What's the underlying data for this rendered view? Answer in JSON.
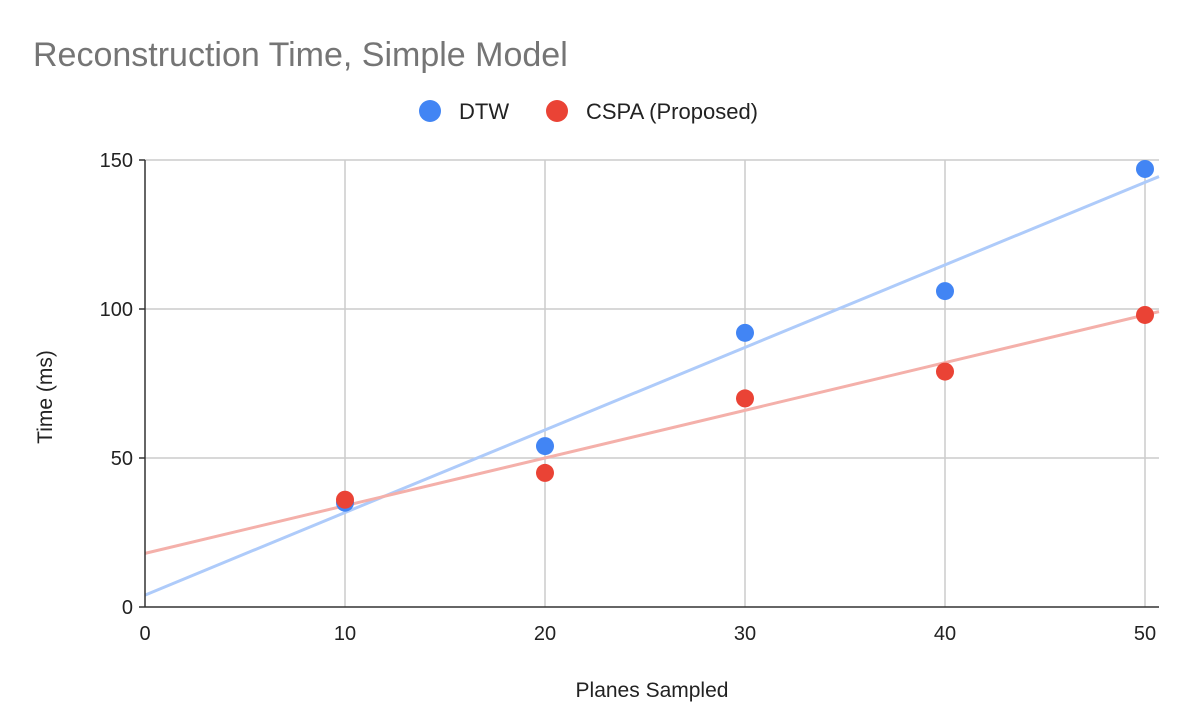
{
  "chart_data": {
    "type": "scatter",
    "title": "Reconstruction Time, Simple Model",
    "xlabel": "Planes Sampled",
    "ylabel": "Time (ms)",
    "xlim": [
      0,
      50.7
    ],
    "ylim": [
      0,
      150
    ],
    "x_ticks": [
      0,
      10,
      20,
      30,
      40,
      50
    ],
    "y_ticks": [
      0,
      50,
      100,
      150
    ],
    "grid": true,
    "legend_position": "top",
    "series": [
      {
        "name": "DTW",
        "color": "#4285F4",
        "trendline_color": "#AECBFA",
        "x": [
          10,
          20,
          30,
          40,
          50
        ],
        "y": [
          35,
          54,
          92,
          106,
          147
        ],
        "trendline": {
          "slope": 2.77,
          "intercept": 4
        }
      },
      {
        "name": "CSPA (Proposed)",
        "color": "#EA4335",
        "trendline_color": "#F4B0AA",
        "x": [
          10,
          20,
          30,
          40,
          50
        ],
        "y": [
          36,
          45,
          70,
          79,
          98
        ],
        "trendline": {
          "slope": 1.6,
          "intercept": 18
        }
      }
    ]
  }
}
